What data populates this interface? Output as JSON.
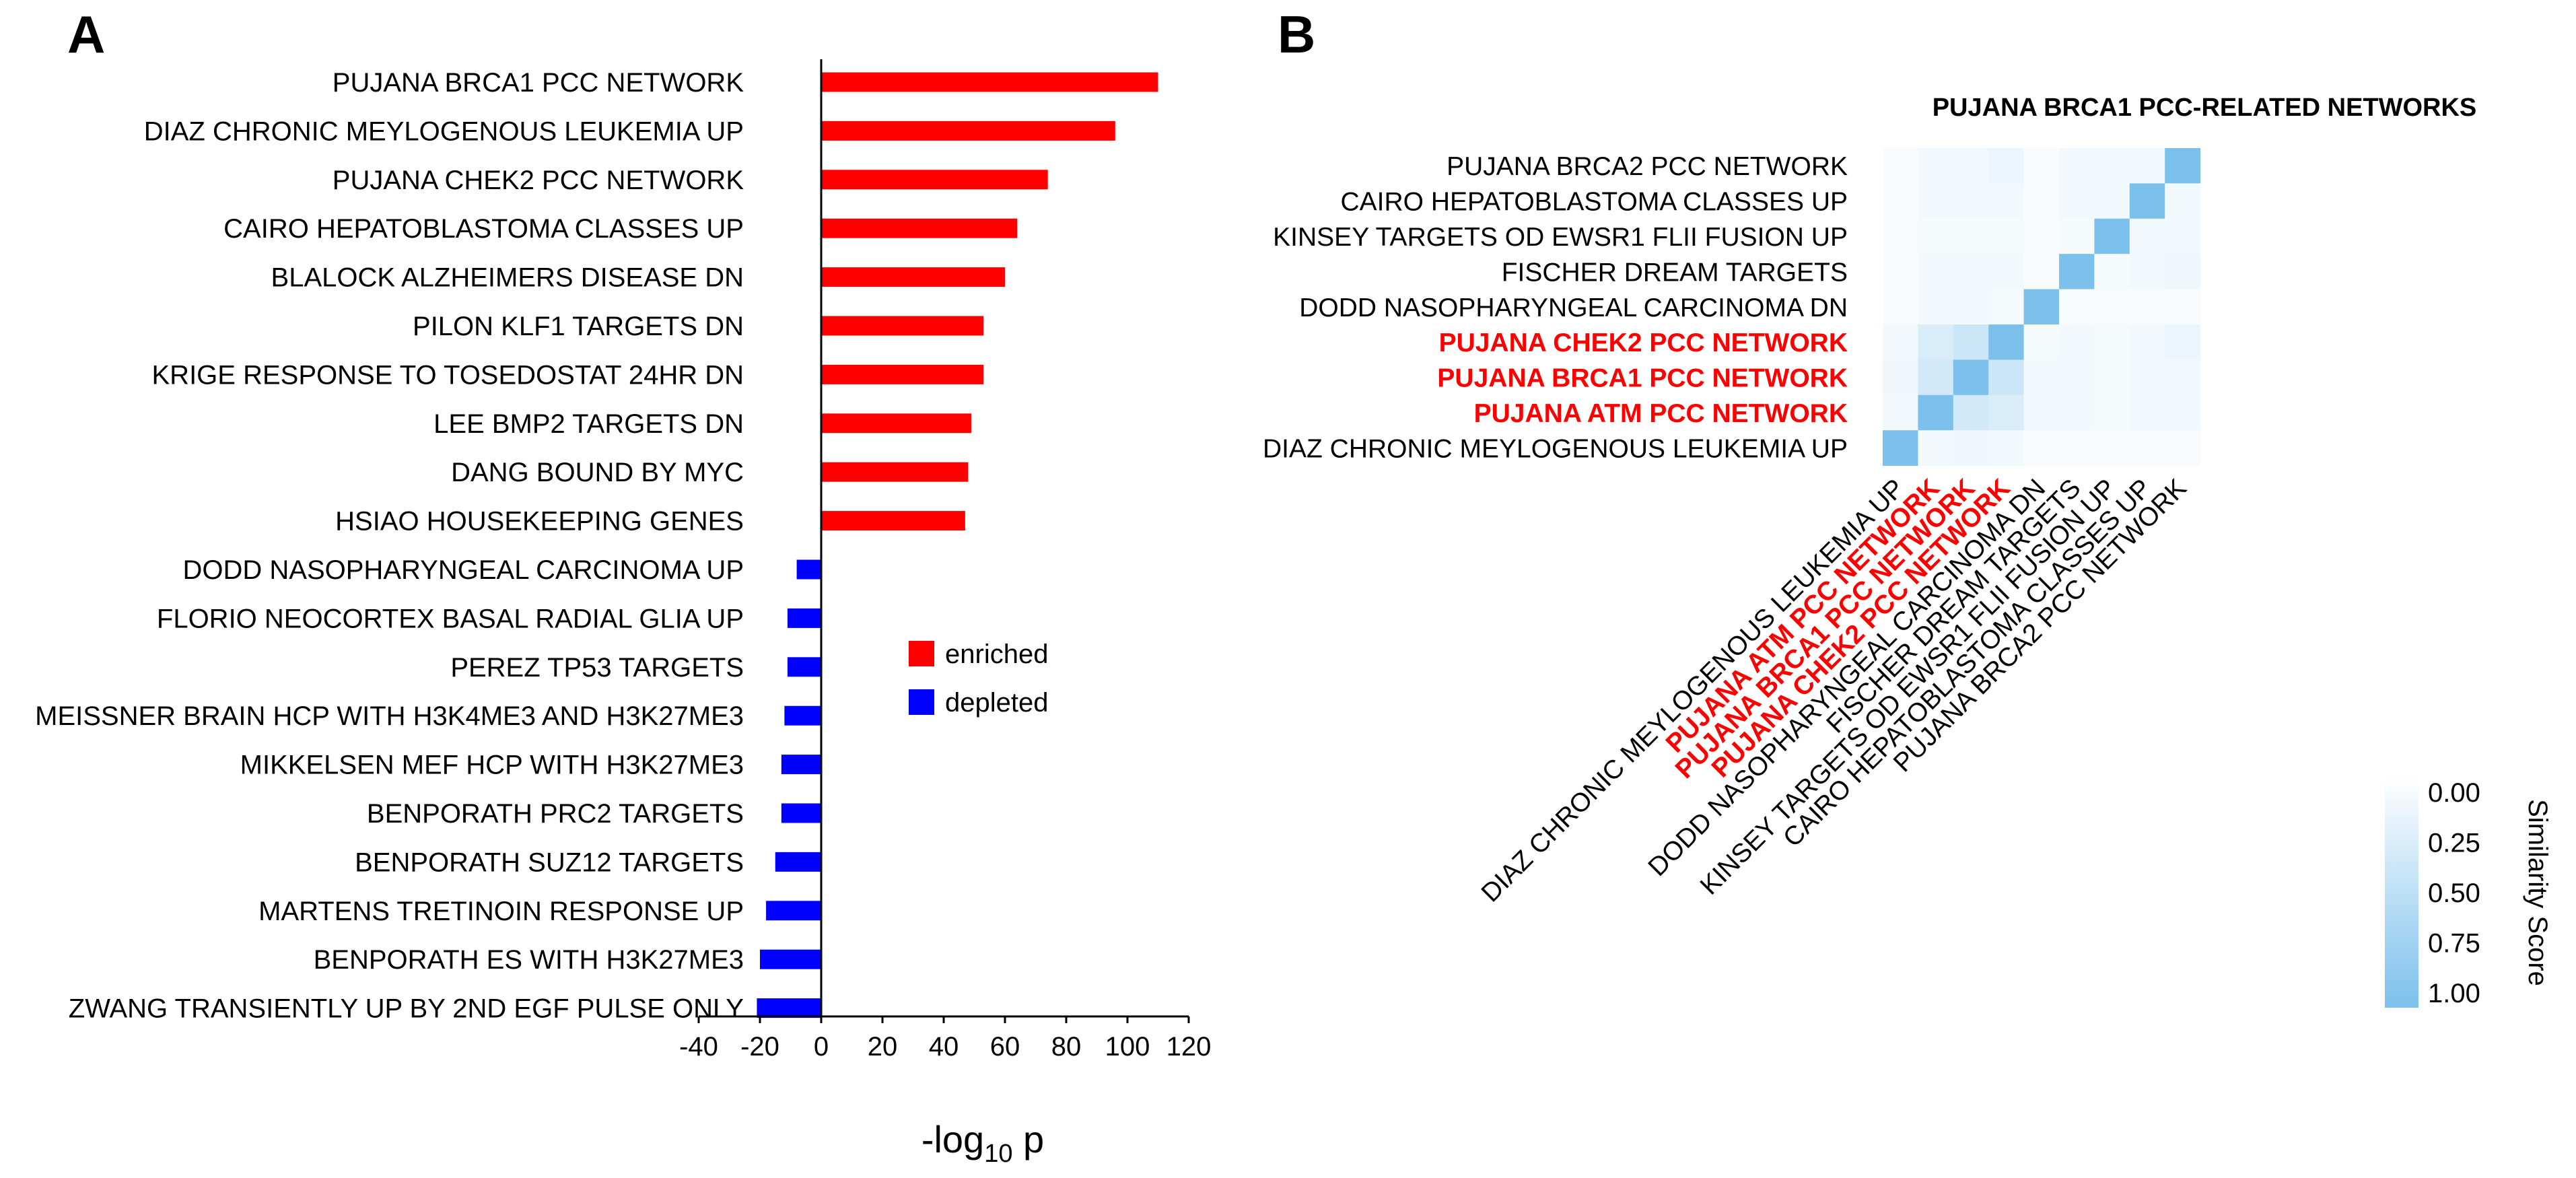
{
  "panels": {
    "a": "A",
    "b": "B"
  },
  "chart_data": [
    {
      "type": "bar",
      "orientation": "horizontal",
      "categories": [
        "PUJANA BRCA1 PCC NETWORK",
        "DIAZ CHRONIC MEYLOGENOUS LEUKEMIA UP",
        "PUJANA CHEK2 PCC NETWORK",
        "CAIRO HEPATOBLASTOMA CLASSES UP",
        "BLALOCK ALZHEIMERS DISEASE DN",
        "PILON KLF1 TARGETS DN",
        "KRIGE RESPONSE TO TOSEDOSTAT 24HR DN",
        "LEE BMP2 TARGETS DN",
        "DANG BOUND BY MYC",
        "HSIAO HOUSEKEEPING GENES",
        "DODD NASOPHARYNGEAL CARCINOMA UP",
        "FLORIO NEOCORTEX BASAL RADIAL GLIA UP",
        "PEREZ TP53 TARGETS",
        "MEISSNER BRAIN HCP WITH H3K4ME3 AND H3K27ME3",
        "MIKKELSEN MEF HCP WITH H3K27ME3",
        "BENPORATH PRC2 TARGETS",
        "BENPORATH SUZ12 TARGETS",
        "MARTENS TRETINOIN RESPONSE UP",
        "BENPORATH ES WITH H3K27ME3",
        "ZWANG TRANSIENTLY UP BY 2ND EGF PULSE ONLY"
      ],
      "values": [
        110,
        96,
        74,
        64,
        60,
        53,
        53,
        49,
        48,
        47,
        -8,
        -11,
        -11,
        -12,
        -13,
        -13,
        -15,
        -18,
        -20,
        -21
      ],
      "colors": {
        "enriched": "#ff0000",
        "depleted": "#0000ff"
      },
      "xlim": [
        -40,
        120
      ],
      "xticks": [
        "-40",
        "-20",
        "0",
        "20",
        "40",
        "60",
        "80",
        "100",
        "120"
      ],
      "xlabel_main": "-log",
      "xlabel_sub": "10",
      "xlabel_suffix": " p",
      "legend": [
        "enriched",
        "depleted"
      ],
      "legend_position": "center-right"
    },
    {
      "type": "heatmap",
      "title": "PUJANA BRCA1 PCC-RELATED NETWORKS",
      "rows_top_to_bottom": [
        "PUJANA BRCA2 PCC NETWORK",
        "CAIRO HEPATOBLASTOMA CLASSES UP",
        "KINSEY TARGETS OD EWSR1 FLII FUSION UP",
        "FISCHER DREAM TARGETS",
        "DODD NASOPHARYNGEAL CARCINOMA DN",
        "PUJANA CHEK2 PCC NETWORK",
        "PUJANA BRCA1 PCC NETWORK",
        "PUJANA ATM PCC NETWORK",
        "DIAZ CHRONIC MEYLOGENOUS LEUKEMIA UP"
      ],
      "columns": [
        "DIAZ CHRONIC MEYLOGENOUS LEUKEMIA UP",
        "PUJANA ATM PCC NETWORK",
        "PUJANA BRCA1 PCC NETWORK",
        "PUJANA CHEK2 PCC NETWORK",
        "DODD NASOPHARYNGEAL CARCINOMA DN",
        "FISCHER DREAM TARGETS",
        "KINSEY TARGETS OD EWSR1 FLII FUSION UP",
        "CAIRO HEPATOBLASTOMA CLASSES UP",
        "PUJANA BRCA2 PCC NETWORK"
      ],
      "highlighted": [
        "PUJANA ATM PCC NETWORK",
        "PUJANA BRCA1 PCC NETWORK",
        "PUJANA CHEK2 PCC NETWORK"
      ],
      "highlight_color": "#ff0000",
      "values_top_to_bottom": [
        [
          0.05,
          0.1,
          0.1,
          0.15,
          0.05,
          0.1,
          0.1,
          0.1,
          1.0
        ],
        [
          0.05,
          0.1,
          0.1,
          0.1,
          0.05,
          0.1,
          0.1,
          1.0,
          0.1
        ],
        [
          0.05,
          0.08,
          0.08,
          0.08,
          0.05,
          0.08,
          1.0,
          0.1,
          0.1
        ],
        [
          0.05,
          0.1,
          0.1,
          0.1,
          0.05,
          1.0,
          0.08,
          0.1,
          0.12
        ],
        [
          0.05,
          0.1,
          0.1,
          0.08,
          1.0,
          0.05,
          0.05,
          0.05,
          0.05
        ],
        [
          0.1,
          0.3,
          0.4,
          1.0,
          0.08,
          0.1,
          0.08,
          0.1,
          0.15
        ],
        [
          0.12,
          0.35,
          1.0,
          0.4,
          0.1,
          0.1,
          0.08,
          0.1,
          0.1
        ],
        [
          0.1,
          1.0,
          0.35,
          0.3,
          0.1,
          0.1,
          0.08,
          0.1,
          0.1
        ],
        [
          1.0,
          0.1,
          0.12,
          0.1,
          0.05,
          0.05,
          0.05,
          0.05,
          0.05
        ]
      ],
      "colorbar": {
        "title": "Similarity Score",
        "ticks": [
          "0.00",
          "0.25",
          "0.50",
          "0.75",
          "1.00"
        ],
        "min_color": "#ffffff",
        "max_color": "#7cc0ec"
      }
    }
  ]
}
